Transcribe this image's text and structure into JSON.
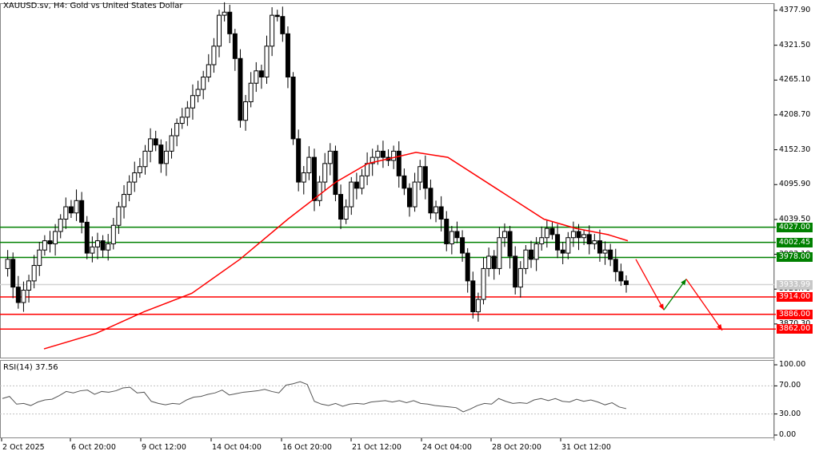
{
  "header": {
    "title": "XAUUSD.sv, H4:  Gold vs United States Dollar"
  },
  "rsi_panel": {
    "title": "RSI(14) 37.56"
  },
  "colors": {
    "bull_candle": "#ffffff",
    "bear_candle": "#000000",
    "ma_line": "#ff0000",
    "resistance": "#008000",
    "support": "#ff0000",
    "current_price": "#c0c0c0",
    "bullish_arrow": "#008000",
    "bearish_arrow": "#ff0000",
    "rsi_line": "#555555"
  },
  "chart_data": [
    {
      "type": "candlestick",
      "title": "XAUUSD.sv, H4: Gold vs United States Dollar",
      "symbol": "XAUUSD.sv",
      "timeframe": "H4",
      "y_ticks": [
        4377.9,
        4321.5,
        4265.1,
        4208.7,
        4152.3,
        4095.9,
        4039.5,
        3983.1,
        3926.7,
        3870.3
      ],
      "y_tick_labels": [
        "4377.90",
        "4321.50",
        "4265.10",
        "4208.70",
        "4152.30",
        "4095.90",
        "4039.50",
        "3983.10",
        "3926.70",
        "3870.30"
      ],
      "ylim": [
        3830,
        4390
      ],
      "x_tick_labels": [
        "2 Oct 2025",
        "6 Oct 20:00",
        "9 Oct 12:00",
        "14 Oct 04:00",
        "16 Oct 20:00",
        "21 Oct 12:00",
        "24 Oct 04:00",
        "28 Oct 20:00",
        "31 Oct 12:00"
      ],
      "current_price": 3933.99,
      "current_price_label": "3933.99",
      "resistance_levels": [
        {
          "value": 4027.0,
          "label": "4027.00"
        },
        {
          "value": 4002.45,
          "label": "4002.45"
        },
        {
          "value": 3978.0,
          "label": "3978.00"
        }
      ],
      "support_levels": [
        {
          "value": 3914.0,
          "label": "3914.00"
        },
        {
          "value": 3886.0,
          "label": "3886.00"
        },
        {
          "value": 3862.0,
          "label": "3862.00"
        }
      ],
      "moving_average": {
        "color": "#ff0000",
        "approx_points": [
          [
            55,
            3830
          ],
          [
            120,
            3855
          ],
          [
            180,
            3890
          ],
          [
            240,
            3920
          ],
          [
            300,
            3975
          ],
          [
            360,
            4040
          ],
          [
            420,
            4100
          ],
          [
            460,
            4130
          ],
          [
            520,
            4148
          ],
          [
            560,
            4140
          ],
          [
            620,
            4090
          ],
          [
            680,
            4040
          ],
          [
            720,
            4025
          ],
          [
            760,
            4015
          ],
          [
            785,
            4005
          ]
        ]
      },
      "projection_arrows": [
        {
          "from": [
            795,
            3975
          ],
          "to": [
            830,
            3893
          ],
          "color": "#ff0000",
          "direction": "down"
        },
        {
          "from": [
            830,
            3893
          ],
          "to": [
            858,
            3943
          ],
          "color": "#008000",
          "direction": "up"
        },
        {
          "from": [
            858,
            3943
          ],
          "to": [
            903,
            3860
          ],
          "color": "#ff0000",
          "direction": "down"
        }
      ],
      "approx_high": 4381,
      "approx_low": 3851
    },
    {
      "type": "line",
      "title": "RSI(14) 37.56",
      "indicator": "RSI",
      "period": 14,
      "last_value": 37.56,
      "y_ticks": [
        100.0,
        70.0,
        30.0,
        0.0
      ],
      "y_tick_labels": [
        "100.00",
        "70.00",
        "30.00",
        "0.00"
      ],
      "levels": [
        70,
        30
      ],
      "ylim": [
        0,
        100
      ],
      "approx_values": [
        52,
        55,
        44,
        45,
        42,
        47,
        50,
        51,
        56,
        62,
        60,
        63,
        64,
        58,
        62,
        61,
        63,
        67,
        68,
        60,
        61,
        48,
        45,
        43,
        45,
        44,
        50,
        54,
        55,
        58,
        60,
        64,
        57,
        59,
        61,
        62,
        63,
        65,
        62,
        60,
        71,
        73,
        76,
        72,
        48,
        44,
        42,
        45,
        41,
        44,
        45,
        44,
        47,
        48,
        49,
        47,
        49,
        46,
        49,
        45,
        44,
        42,
        41,
        40,
        39,
        33,
        37,
        42,
        45,
        44,
        52,
        48,
        45,
        46,
        45,
        50,
        52,
        49,
        52,
        48,
        47,
        51,
        48,
        50,
        47,
        43,
        46,
        40,
        37.56
      ]
    }
  ]
}
